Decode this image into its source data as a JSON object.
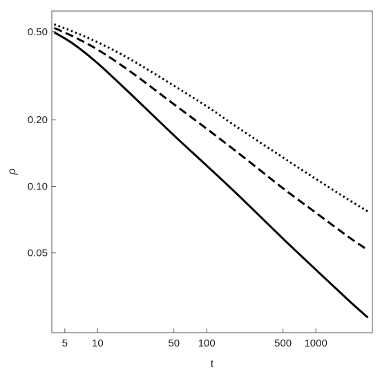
{
  "chart_data": {
    "type": "line",
    "title": "",
    "xlabel": "t",
    "ylabel": "ρ",
    "xscale": "log",
    "yscale": "log",
    "xlim": [
      3.8,
      3300
    ],
    "ylim": [
      0.0218,
      0.62
    ],
    "x_ticks": [
      5,
      10,
      50,
      100,
      500,
      1000
    ],
    "x_tick_labels": [
      "5",
      "10",
      "50",
      "100",
      "500",
      "1000"
    ],
    "y_ticks": [
      0.05,
      0.1,
      0.2,
      0.5
    ],
    "y_tick_labels": [
      "0.05",
      "0.10",
      "0.20",
      "0.50"
    ],
    "grid": false,
    "legend": "none",
    "series": [
      {
        "style": "solid",
        "color": "#000000",
        "x": [
          4,
          6,
          10,
          20,
          50,
          100,
          200,
          500,
          1000,
          2000,
          3000
        ],
        "y": [
          0.497,
          0.44,
          0.36,
          0.262,
          0.17,
          0.124,
          0.09,
          0.058,
          0.042,
          0.0305,
          0.0255
        ]
      },
      {
        "style": "dashed",
        "color": "#000000",
        "x": [
          4,
          6,
          10,
          20,
          50,
          100,
          200,
          500,
          1000,
          2000,
          3000
        ],
        "y": [
          0.52,
          0.475,
          0.415,
          0.33,
          0.235,
          0.182,
          0.14,
          0.098,
          0.076,
          0.059,
          0.0515
        ]
      },
      {
        "style": "dotted",
        "color": "#000000",
        "x": [
          4,
          6,
          10,
          20,
          50,
          100,
          200,
          500,
          1000,
          2000,
          3000
        ],
        "y": [
          0.54,
          0.5,
          0.448,
          0.375,
          0.285,
          0.23,
          0.182,
          0.135,
          0.108,
          0.087,
          0.077
        ]
      }
    ]
  }
}
